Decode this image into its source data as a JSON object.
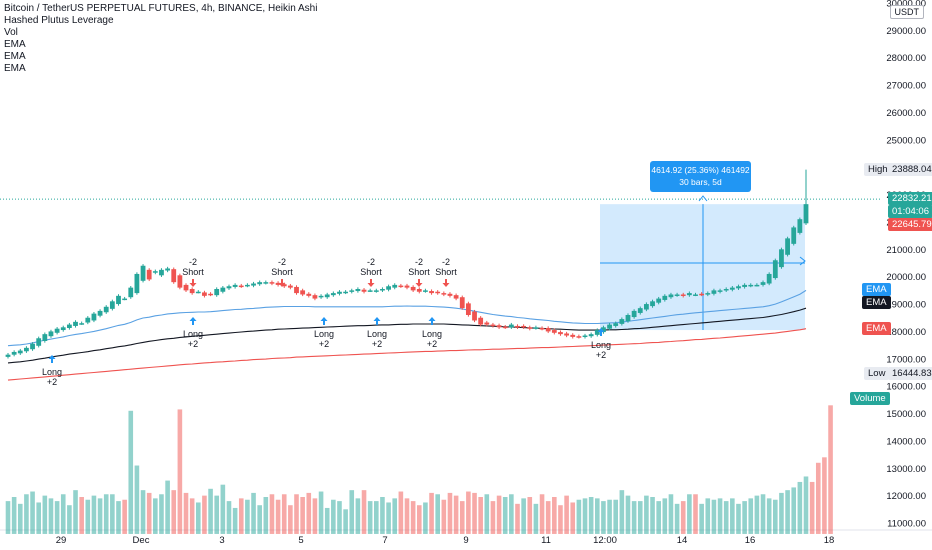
{
  "header": {
    "title": "Bitcoin / TetherUS PERPETUAL FUTURES, 4h, BINANCE, Heikin Ashi",
    "indicators": [
      "Hashed Plutus Leverage",
      "Vol",
      "EMA",
      "EMA",
      "EMA"
    ],
    "currency": "USDT"
  },
  "price_axis": {
    "ticks": [
      "30000.00",
      "29000.00",
      "28000.00",
      "27000.00",
      "26000.00",
      "25000.00",
      "24000.00",
      "23000.00",
      "22000.00",
      "21000.00",
      "20000.00",
      "19000.00",
      "18000.00",
      "17000.00",
      "16000.00",
      "15000.00",
      "14000.00",
      "13000.00",
      "12000.00",
      "11000.00"
    ],
    "labels": {
      "high_label": "High",
      "high_value": "23888.04",
      "last_price": "22832.21",
      "countdown": "01:04:06",
      "price2": "22645.79",
      "ema1": "EMA",
      "ema2": "EMA",
      "ema3": "EMA",
      "low_label": "Low",
      "low_value": "16444.83",
      "volume": "Volume"
    }
  },
  "time_axis": {
    "ticks": [
      "29",
      "Dec",
      "3",
      "5",
      "7",
      "9",
      "11",
      "12:00",
      "14",
      "16",
      "18"
    ]
  },
  "measure_box": {
    "line1": "4614.92 (25.36%) 461492",
    "line2": "30 bars, 5d"
  },
  "signals": [
    {
      "type": "long",
      "l1": "Long",
      "l2": "+2"
    },
    {
      "type": "short",
      "l1": "-2",
      "l2": "Short"
    },
    {
      "type": "long",
      "l1": "Long",
      "l2": "+2"
    },
    {
      "type": "short",
      "l1": "-2",
      "l2": "Short"
    },
    {
      "type": "long",
      "l1": "Long",
      "l2": "+2"
    },
    {
      "type": "short",
      "l1": "-2",
      "l2": "Short"
    },
    {
      "type": "long",
      "l1": "Long",
      "l2": "+2"
    },
    {
      "type": "short",
      "l1": "-2",
      "l2": "Short"
    },
    {
      "type": "long",
      "l1": "Long",
      "l2": "+2"
    },
    {
      "type": "short",
      "l1": "-2",
      "l2": "Short"
    },
    {
      "type": "long",
      "l1": "Long",
      "l2": "+2"
    }
  ],
  "colors": {
    "up": "#26a69a",
    "down": "#ef5350",
    "ema_blue": "#5aa1e3",
    "ema_black": "#131722",
    "ema_red": "#ef5350",
    "accent": "#2962ff"
  },
  "chart_data": {
    "type": "candlestick",
    "style": "Heikin Ashi",
    "timeframe": "4h",
    "y_range": [
      15500,
      30000
    ],
    "volume_range": [
      10600,
      15600
    ],
    "closes": [
      17150,
      17250,
      17300,
      17400,
      17550,
      17750,
      17900,
      18000,
      18100,
      18150,
      18250,
      18350,
      18300,
      18500,
      18650,
      18750,
      18900,
      19100,
      19300,
      19200,
      19600,
      20100,
      20400,
      19900,
      20200,
      20250,
      20300,
      19800,
      19600,
      19500,
      19400,
      19450,
      19300,
      19350,
      19550,
      19600,
      19650,
      19700,
      19650,
      19700,
      19750,
      19800,
      19800,
      19750,
      19700,
      19650,
      19600,
      19400,
      19350,
      19300,
      19200,
      19300,
      19350,
      19400,
      19450,
      19450,
      19500,
      19550,
      19450,
      19500,
      19500,
      19550,
      19650,
      19700,
      19650,
      19600,
      19500,
      19450,
      19500,
      19400,
      19400,
      19350,
      19300,
      19200,
      18850,
      18600,
      18400,
      18250,
      18250,
      18200,
      18150,
      18150,
      18250,
      18150,
      18150,
      18100,
      18150,
      18100,
      18000,
      17950,
      17900,
      17850,
      17800,
      17800,
      17850,
      17900,
      18050,
      18150,
      18250,
      18300,
      18450,
      18600,
      18750,
      18850,
      19000,
      19100,
      19200,
      19300,
      19350,
      19350,
      19300,
      19400,
      19350,
      19350,
      19400,
      19500,
      19500,
      19550,
      19600,
      19650,
      19700,
      19700,
      19700,
      19800,
      20100,
      20600,
      21000,
      21400,
      21800,
      22100,
      22650
    ],
    "volumes": [
      11800,
      11950,
      11700,
      12050,
      12150,
      11750,
      12000,
      11900,
      11800,
      12050,
      11650,
      12200,
      11950,
      11850,
      12000,
      11900,
      12050,
      12050,
      11800,
      11850,
      15100,
      13100,
      12200,
      12100,
      11900,
      12050,
      12550,
      12200,
      15150,
      12100,
      11900,
      11750,
      12000,
      12250,
      12000,
      12400,
      11800,
      11550,
      11900,
      11850,
      12100,
      11650,
      11950,
      12050,
      11850,
      12050,
      11650,
      12050,
      11950,
      12100,
      11900,
      12150,
      11550,
      11850,
      11800,
      11500,
      12200,
      11900,
      12200,
      11800,
      11800,
      11950,
      11750,
      11900,
      12150,
      11900,
      11800,
      11650,
      11750,
      12100,
      12050,
      11850,
      12100,
      12000,
      11800,
      12150,
      12100,
      11950,
      12050,
      11800,
      12000,
      11950,
      12050,
      11700,
      11900,
      11950,
      11700,
      12050,
      11800,
      11950,
      11650,
      12000,
      11750,
      11850,
      11900,
      11950,
      11900,
      11800,
      11850,
      11850,
      12200,
      12000,
      11800,
      11800,
      12000,
      11950,
      11800,
      11900,
      12050,
      11700,
      11800,
      12050,
      12050,
      11700,
      11900,
      11850,
      11900,
      11800,
      11900,
      11700,
      11800,
      11900,
      12000,
      12050,
      11900,
      11850,
      12100,
      12200,
      12300,
      12500,
      12700,
      12500,
      13200,
      13400,
      15300
    ],
    "ema_fast": [
      17480,
      17495,
      17510,
      17540,
      17580,
      17630,
      17680,
      17720,
      17760,
      17800,
      17850,
      17890,
      17920,
      17960,
      18000,
      18050,
      18100,
      18160,
      18220,
      18260,
      18330,
      18420,
      18490,
      18520,
      18570,
      18600,
      18640,
      18660,
      18680,
      18690,
      18700,
      18710,
      18710,
      18720,
      18740,
      18760,
      18780,
      18800,
      18810,
      18830,
      18840,
      18860,
      18880,
      18890,
      18900,
      18910,
      18910,
      18910,
      18910,
      18910,
      18900,
      18900,
      18900,
      18900,
      18900,
      18900,
      18900,
      18900,
      18900,
      18900,
      18900,
      18900,
      18910,
      18920,
      18920,
      18930,
      18920,
      18920,
      18920,
      18910,
      18900,
      18890,
      18870,
      18850,
      18820,
      18780,
      18740,
      18700,
      18660,
      18620,
      18590,
      18560,
      18540,
      18510,
      18490,
      18460,
      18440,
      18420,
      18400,
      18370,
      18350,
      18330,
      18310,
      18300,
      18290,
      18290,
      18290,
      18300,
      18310,
      18320,
      18340,
      18370,
      18400,
      18430,
      18460,
      18490,
      18520,
      18550,
      18580,
      18610,
      18630,
      18660,
      18680,
      18700,
      18720,
      18740,
      18760,
      18780,
      18800,
      18820,
      18840,
      18860,
      18880,
      18900,
      18940,
      19000,
      19080,
      19170,
      19260,
      19360,
      19500
    ],
    "ema_mid": [
      16850,
      16870,
      16890,
      16920,
      16950,
      16990,
      17020,
      17060,
      17100,
      17130,
      17170,
      17200,
      17230,
      17260,
      17300,
      17330,
      17370,
      17400,
      17440,
      17470,
      17510,
      17560,
      17600,
      17640,
      17670,
      17700,
      17730,
      17750,
      17780,
      17800,
      17820,
      17840,
      17860,
      17880,
      17900,
      17920,
      17940,
      17960,
      17980,
      18000,
      18010,
      18030,
      18050,
      18060,
      18080,
      18090,
      18100,
      18110,
      18120,
      18130,
      18140,
      18150,
      18160,
      18170,
      18180,
      18190,
      18200,
      18210,
      18210,
      18220,
      18230,
      18240,
      18240,
      18250,
      18260,
      18260,
      18270,
      18270,
      18270,
      18270,
      18270,
      18270,
      18260,
      18250,
      18240,
      18230,
      18220,
      18210,
      18200,
      18190,
      18180,
      18170,
      18160,
      18150,
      18140,
      18130,
      18120,
      18110,
      18100,
      18090,
      18080,
      18070,
      18060,
      18050,
      18050,
      18050,
      18050,
      18050,
      18060,
      18060,
      18070,
      18080,
      18100,
      18110,
      18130,
      18150,
      18170,
      18190,
      18210,
      18230,
      18250,
      18270,
      18290,
      18310,
      18330,
      18350,
      18370,
      18390,
      18410,
      18430,
      18450,
      18470,
      18490,
      18510,
      18540,
      18580,
      18620,
      18670,
      18720,
      18780,
      18850
    ],
    "ema_slow": [
      16220,
      16240,
      16260,
      16280,
      16300,
      16320,
      16340,
      16360,
      16380,
      16400,
      16420,
      16440,
      16460,
      16480,
      16500,
      16520,
      16540,
      16560,
      16580,
      16600,
      16620,
      16640,
      16660,
      16680,
      16700,
      16720,
      16740,
      16760,
      16780,
      16800,
      16810,
      16830,
      16850,
      16860,
      16880,
      16890,
      16910,
      16920,
      16940,
      16950,
      16970,
      16980,
      16990,
      17010,
      17020,
      17030,
      17040,
      17060,
      17070,
      17080,
      17090,
      17100,
      17110,
      17120,
      17130,
      17140,
      17150,
      17160,
      17170,
      17180,
      17190,
      17200,
      17210,
      17220,
      17230,
      17240,
      17250,
      17260,
      17270,
      17270,
      17280,
      17290,
      17300,
      17300,
      17310,
      17320,
      17330,
      17330,
      17340,
      17350,
      17350,
      17360,
      17370,
      17380,
      17380,
      17390,
      17400,
      17410,
      17410,
      17420,
      17430,
      17440,
      17450,
      17460,
      17470,
      17480,
      17490,
      17500,
      17510,
      17520,
      17530,
      17540,
      17550,
      17560,
      17580,
      17590,
      17600,
      17620,
      17630,
      17650,
      17660,
      17680,
      17700,
      17710,
      17730,
      17750,
      17760,
      17780,
      17800,
      17820,
      17840,
      17860,
      17880,
      17900,
      17920,
      17940,
      17970,
      18000,
      18030,
      18060,
      18100
    ],
    "high": 23888.04,
    "low": 16444.83
  }
}
